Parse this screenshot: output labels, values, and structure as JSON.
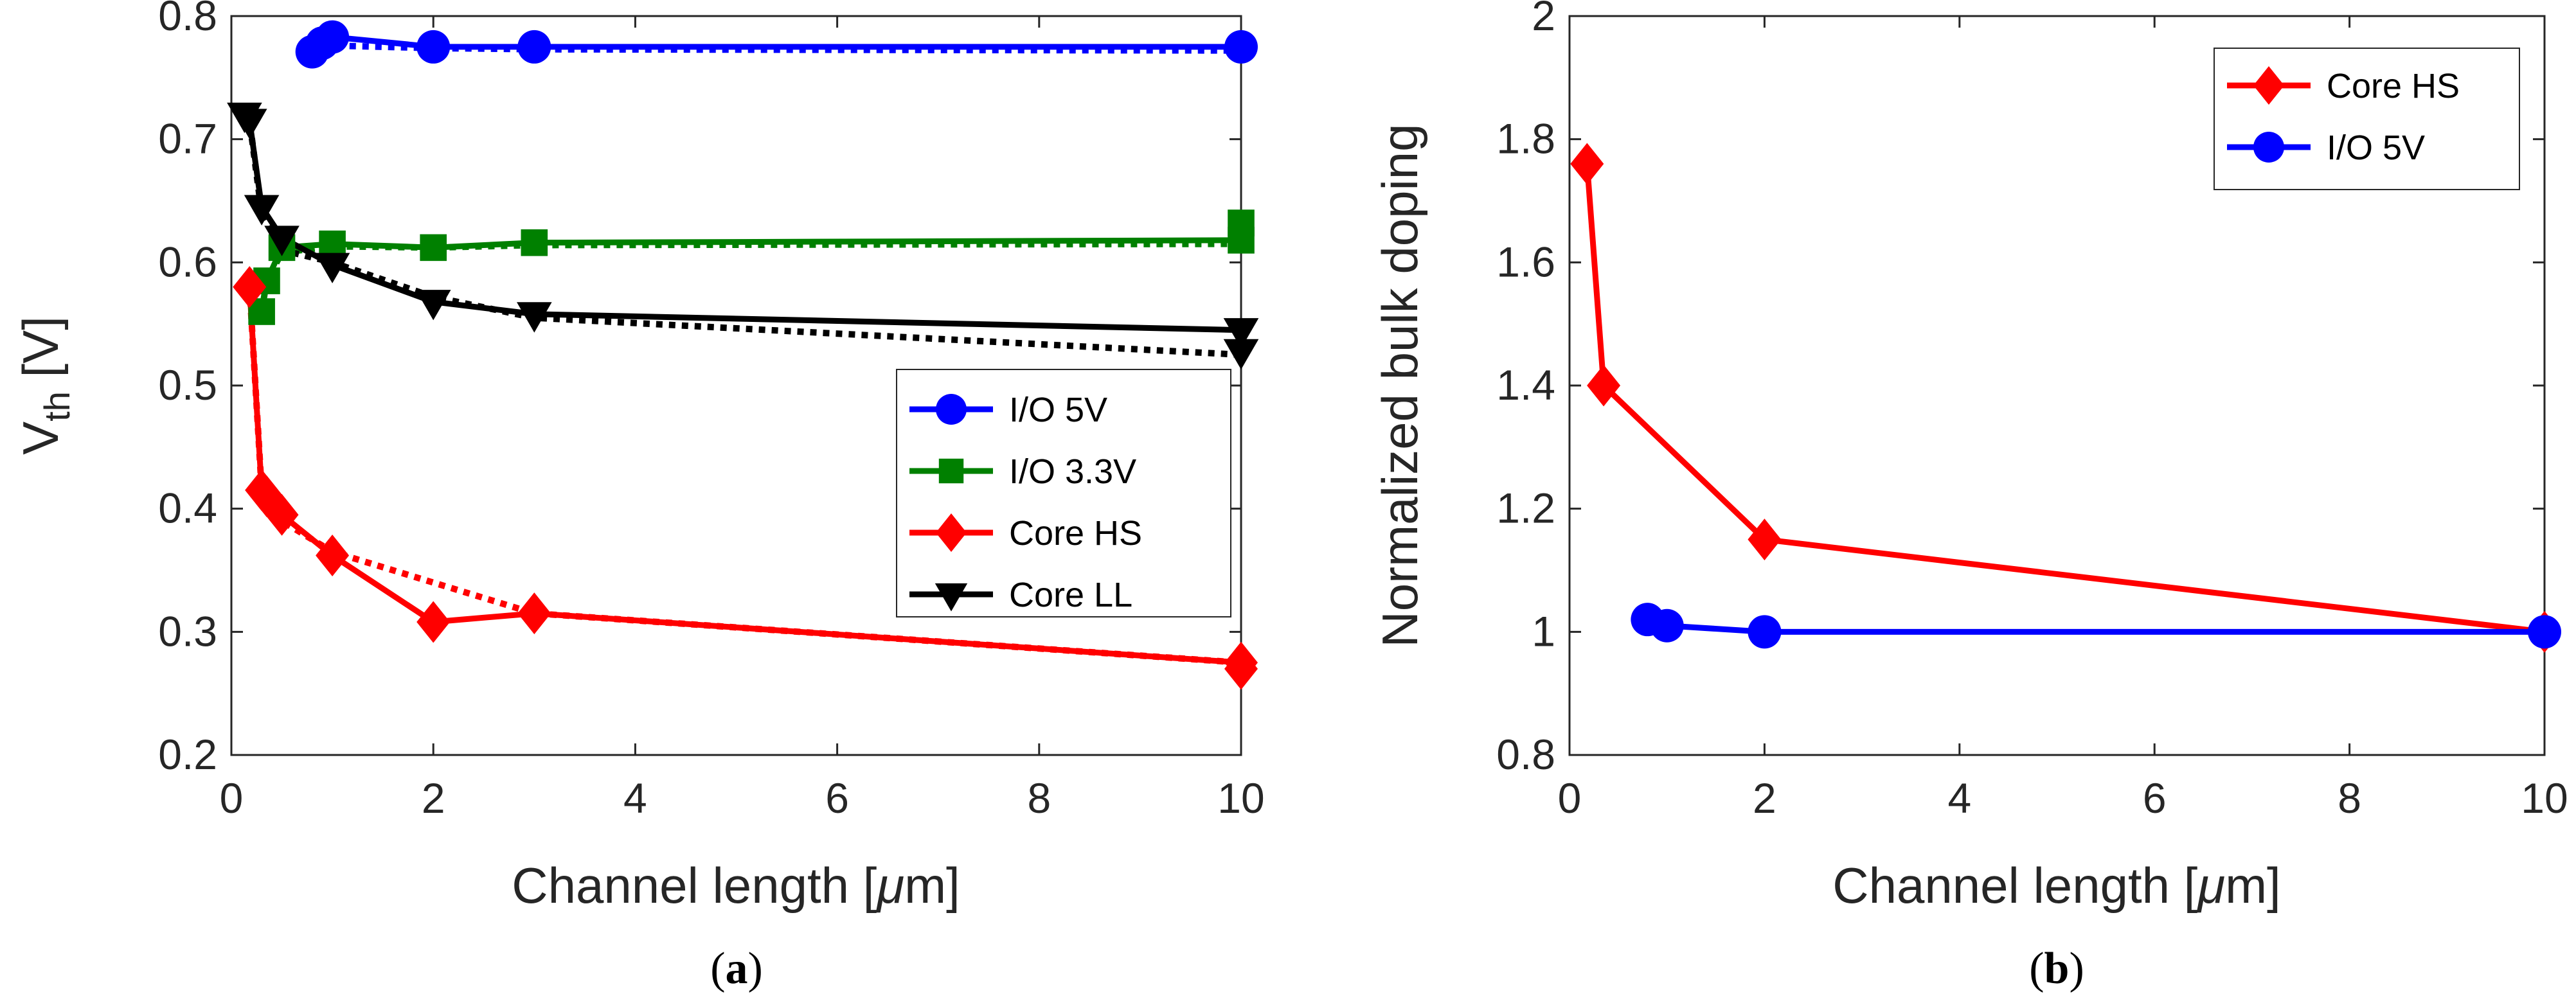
{
  "colors": {
    "blue": "#0000ff",
    "green": "#008000",
    "red": "#ff0000",
    "black": "#000000",
    "axis": "#262626"
  },
  "chart_data": [
    {
      "type": "line",
      "panel": "a",
      "caption_left": "(",
      "caption_letter": "a",
      "caption_right": ")",
      "xlabel_main": "Channel length [",
      "xlabel_unit_greek": "μ",
      "xlabel_unit_rest": "m]",
      "ylabel_main": "V",
      "ylabel_sub": "th",
      "ylabel_unit": " [V]",
      "xlim": [
        0,
        10
      ],
      "ylim": [
        0.2,
        0.8
      ],
      "xticks": [
        0,
        2,
        4,
        6,
        8,
        10
      ],
      "xtick_labels": [
        "0",
        "2",
        "4",
        "6",
        "8",
        "10"
      ],
      "yticks": [
        0.2,
        0.3,
        0.4,
        0.5,
        0.6,
        0.7,
        0.8
      ],
      "ytick_labels": [
        "0.2",
        "0.3",
        "0.4",
        "0.5",
        "0.6",
        "0.7",
        "0.8"
      ],
      "legend_position": "center-right",
      "series": [
        {
          "name": "I/O 5V",
          "color": "#0000ff",
          "marker": "circle",
          "x": [
            0.8,
            0.9,
            1,
            2,
            3,
            10
          ],
          "y": [
            0.771,
            0.778,
            0.783,
            0.775,
            0.775,
            0.775
          ],
          "fit_x": [
            0.8,
            0.9,
            1,
            2,
            3,
            10
          ],
          "fit_y": [
            0.771,
            0.775,
            0.776,
            0.774,
            0.773,
            0.772
          ]
        },
        {
          "name": "I/O 3.3V",
          "color": "#008000",
          "marker": "square",
          "x": [
            0.3,
            0.35,
            0.5,
            1,
            2,
            3,
            10,
            10
          ],
          "y": [
            0.56,
            0.585,
            0.612,
            0.615,
            0.612,
            0.616,
            0.618,
            0.632
          ],
          "fit_x": [
            0.3,
            0.35,
            0.5,
            1,
            2,
            3,
            10
          ],
          "fit_y": [
            0.56,
            0.585,
            0.608,
            0.613,
            0.612,
            0.614,
            0.615
          ]
        },
        {
          "name": "Core HS",
          "color": "#ff0000",
          "marker": "diamond",
          "x": [
            0.18,
            0.3,
            0.35,
            0.5,
            1,
            2,
            3,
            10,
            10
          ],
          "y": [
            0.58,
            0.415,
            0.41,
            0.395,
            0.362,
            0.308,
            0.315,
            0.275,
            0.27
          ],
          "fit_x": [
            0.18,
            0.3,
            0.35,
            0.5,
            1,
            2,
            3,
            10
          ],
          "fit_y": [
            0.58,
            0.415,
            0.405,
            0.39,
            0.365,
            0.34,
            0.315,
            0.275
          ]
        },
        {
          "name": "Core LL",
          "color": "#000000",
          "marker": "triangle-down",
          "x": [
            0.13,
            0.18,
            0.3,
            0.5,
            1,
            2,
            3,
            10,
            10
          ],
          "y": [
            0.72,
            0.715,
            0.645,
            0.62,
            0.598,
            0.568,
            0.558,
            0.545,
            0.528
          ],
          "fit_x": [
            0.13,
            0.18,
            0.3,
            0.5,
            1,
            2,
            3,
            10
          ],
          "fit_y": [
            0.72,
            0.715,
            0.64,
            0.61,
            0.6,
            0.572,
            0.555,
            0.525
          ]
        }
      ]
    },
    {
      "type": "line",
      "panel": "b",
      "caption_left": "(",
      "caption_letter": "b",
      "caption_right": ")",
      "xlabel_main": "Channel length [",
      "xlabel_unit_greek": "μ",
      "xlabel_unit_rest": "m]",
      "ylabel": "Normalized bulk doping",
      "xlim": [
        0,
        10
      ],
      "ylim": [
        0.8,
        2
      ],
      "xticks": [
        0,
        2,
        4,
        6,
        8,
        10
      ],
      "xtick_labels": [
        "0",
        "2",
        "4",
        "6",
        "8",
        "10"
      ],
      "yticks": [
        0.8,
        1,
        1.2,
        1.4,
        1.6,
        1.8,
        2
      ],
      "ytick_labels": [
        "0.8",
        "1",
        "1.2",
        "1.4",
        "1.6",
        "1.8",
        "2"
      ],
      "legend_position": "top-right",
      "series": [
        {
          "name": "Core HS",
          "color": "#ff0000",
          "marker": "diamond",
          "x": [
            0.18,
            0.35,
            2,
            10
          ],
          "y": [
            1.76,
            1.4,
            1.15,
            1.0
          ]
        },
        {
          "name": "I/O 5V",
          "color": "#0000ff",
          "marker": "circle",
          "x": [
            0.8,
            1,
            2,
            10
          ],
          "y": [
            1.02,
            1.01,
            1.0,
            1.0
          ]
        }
      ]
    }
  ]
}
